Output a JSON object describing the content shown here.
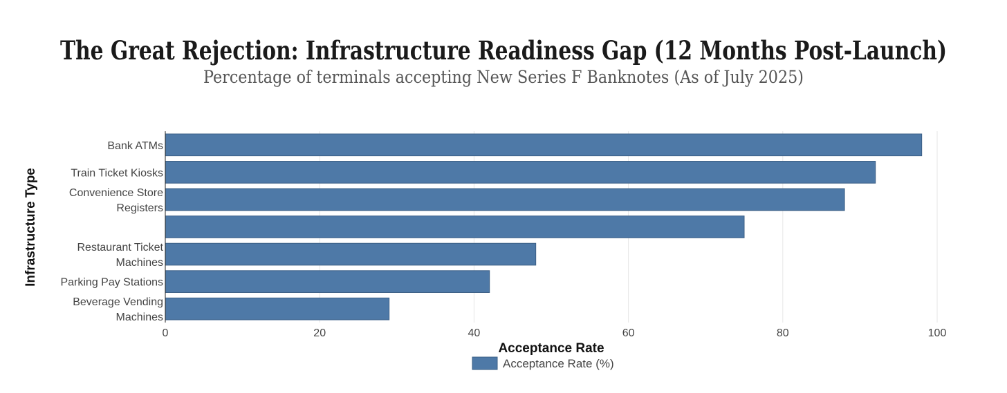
{
  "chart_data": {
    "type": "bar",
    "orientation": "horizontal",
    "title": "The Great Rejection: Infrastructure Readiness Gap (12 Months Post-Launch)",
    "subtitle": "Percentage of terminals accepting New Series F Banknotes (As of July 2025)",
    "xlabel": "Acceptance Rate",
    "ylabel": "Infrastructure Type",
    "xlim": [
      0,
      100
    ],
    "xticks": [
      0,
      20,
      40,
      60,
      80,
      100
    ],
    "categories": [
      [
        "Bank ATMs"
      ],
      [
        "Train Ticket Kiosks"
      ],
      [
        "Convenience Store",
        "Registers"
      ],
      [],
      [
        "Restaurant Ticket",
        "Machines"
      ],
      [
        "Parking Pay Stations"
      ],
      [
        "Beverage Vending",
        "Machines"
      ]
    ],
    "series": [
      {
        "name": "Acceptance Rate (%)",
        "color": "#4e79a7",
        "values": [
          98,
          92,
          88,
          75,
          48,
          42,
          29
        ]
      }
    ],
    "grid": true,
    "legend_position": "bottom-center"
  }
}
